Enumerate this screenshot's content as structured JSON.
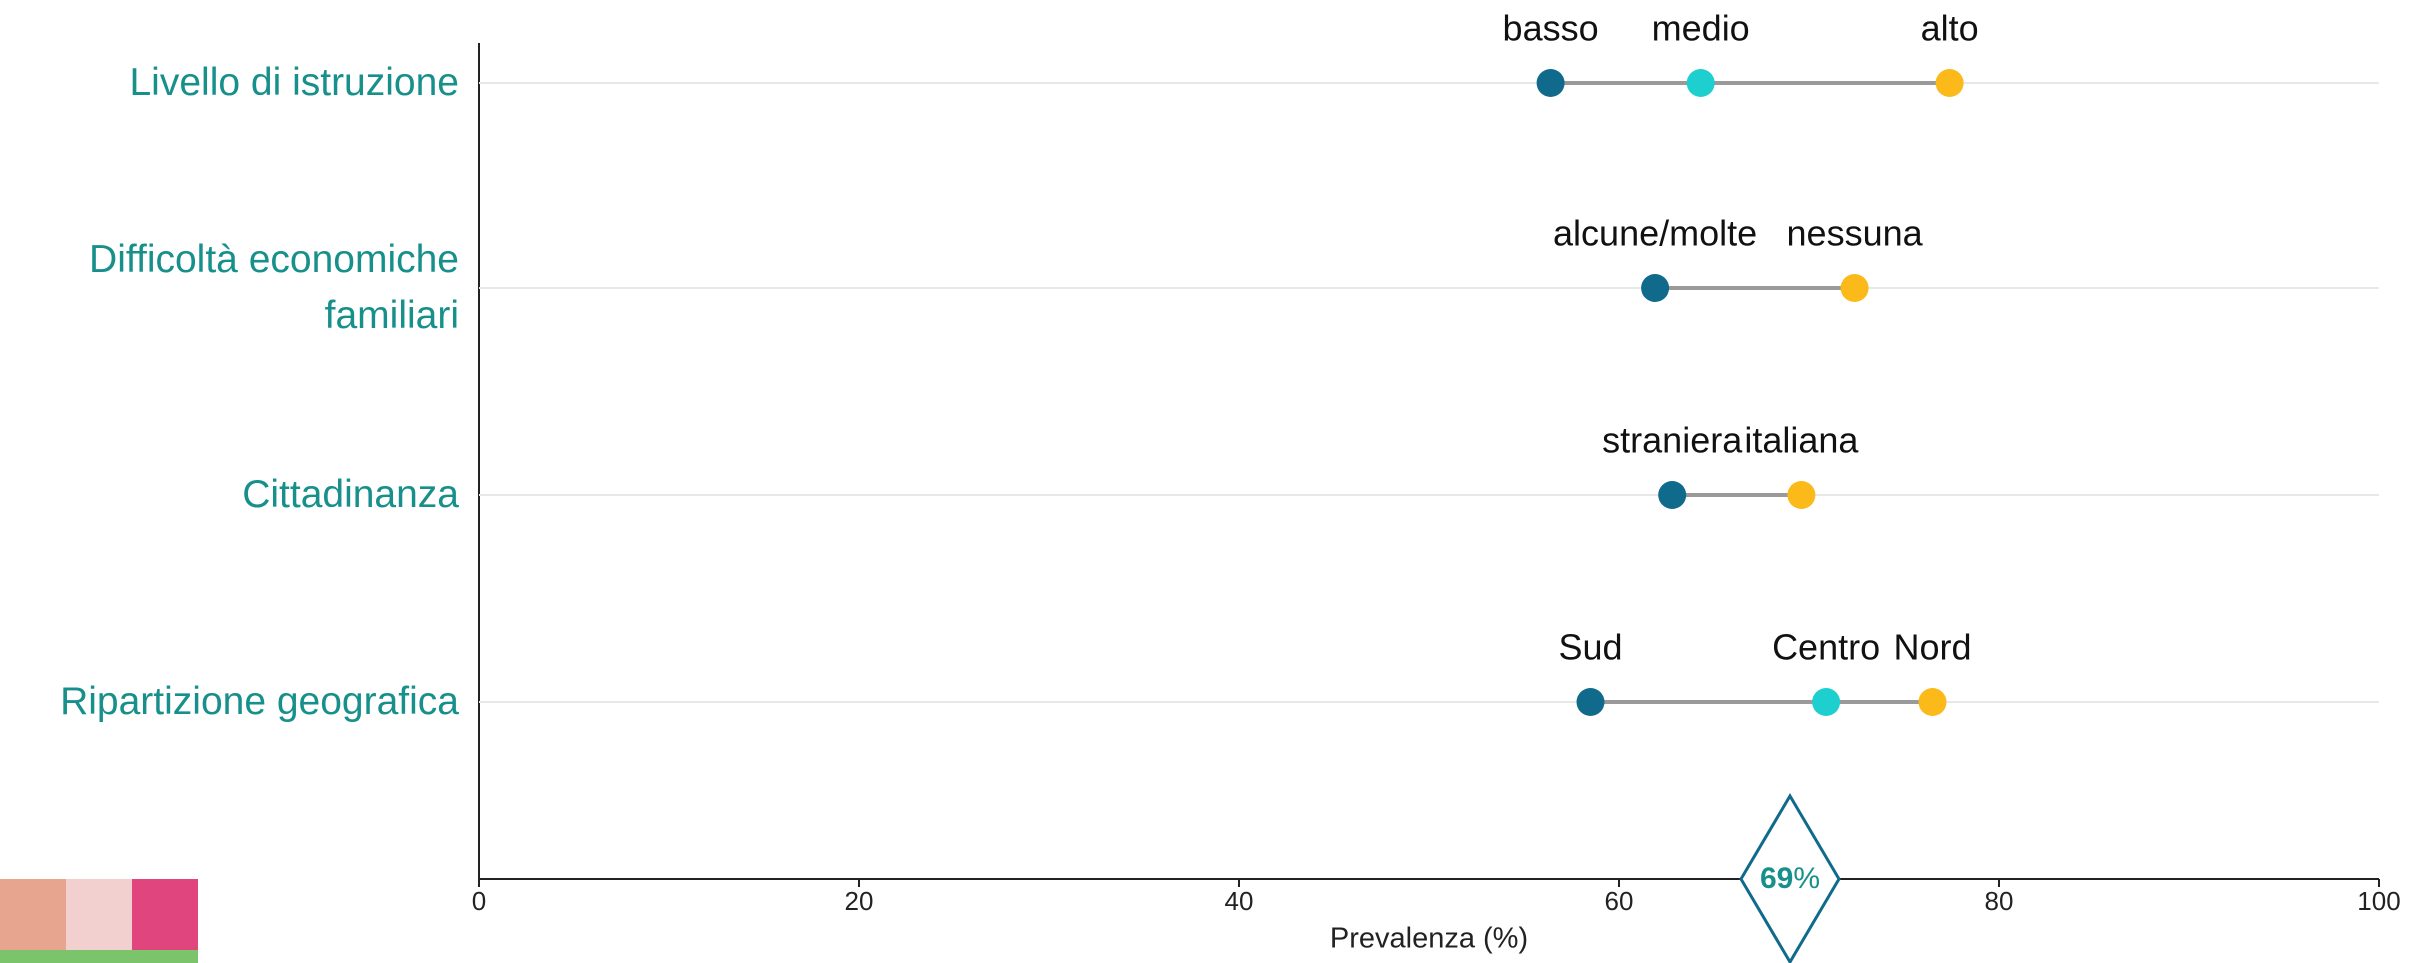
{
  "chart_data": {
    "type": "dumbbell",
    "xlabel": "Prevalenza (%)",
    "xlim": [
      0,
      100
    ],
    "xticks": [
      0,
      20,
      40,
      60,
      80,
      100
    ],
    "line_color": "#9a9a9a",
    "groups": [
      {
        "name": "Livello di istruzione",
        "points": [
          {
            "label": "basso",
            "value": 56.4,
            "color": "#0f6a8b"
          },
          {
            "label": "medio",
            "value": 64.3,
            "color": "#1ecfd0"
          },
          {
            "label": "alto",
            "value": 77.4,
            "color": "#fbb91a"
          }
        ]
      },
      {
        "name": "Difficoltà economiche\nfamiliari",
        "points": [
          {
            "label": "alcune/molte",
            "value": 61.9,
            "color": "#0f6a8b"
          },
          {
            "label": "nessuna",
            "value": 72.4,
            "color": "#fbb91a"
          }
        ]
      },
      {
        "name": "Cittadinanza",
        "points": [
          {
            "label": "straniera",
            "value": 62.8,
            "color": "#0f6a8b"
          },
          {
            "label": "italiana",
            "value": 69.6,
            "color": "#fbb91a"
          }
        ]
      },
      {
        "name": "Ripartizione geografica",
        "points": [
          {
            "label": "Sud",
            "value": 58.5,
            "color": "#0f6a8b"
          },
          {
            "label": "Centro",
            "value": 70.9,
            "color": "#1ecfd0"
          },
          {
            "label": "Nord",
            "value": 76.5,
            "color": "#fbb91a"
          }
        ]
      }
    ],
    "reference": {
      "value": 69,
      "unit": "%",
      "color": "#0f6a8b"
    }
  }
}
